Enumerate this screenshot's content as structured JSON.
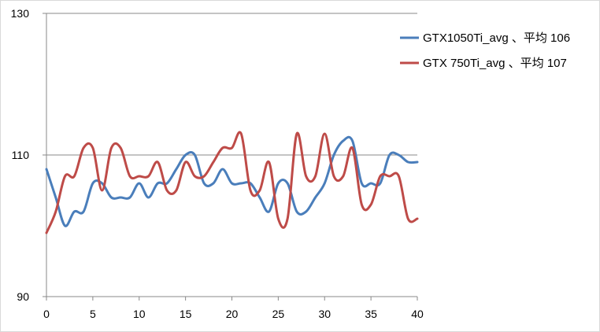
{
  "chart_data": {
    "type": "line",
    "x": [
      0,
      1,
      2,
      3,
      4,
      5,
      6,
      7,
      8,
      9,
      10,
      11,
      12,
      13,
      14,
      15,
      16,
      17,
      18,
      19,
      20,
      21,
      22,
      23,
      24,
      25,
      26,
      27,
      28,
      29,
      30,
      31,
      32,
      33,
      34,
      35,
      36,
      37,
      38,
      39,
      40
    ],
    "series": [
      {
        "name": "GTX1050Ti_avg 、平均 106",
        "color": "#4a7ebb",
        "values": [
          108,
          104,
          100,
          102,
          102,
          106,
          106,
          104,
          104,
          104,
          106,
          104,
          106,
          106,
          108,
          110,
          110,
          106,
          106,
          108,
          106,
          106,
          106,
          104,
          102,
          106,
          106,
          102,
          102,
          104,
          106,
          110,
          112,
          112,
          106,
          106,
          106,
          110,
          110,
          109,
          109
        ]
      },
      {
        "name": "GTX 750Ti_avg 、平均 107",
        "color": "#be4b48",
        "values": [
          99,
          102,
          107,
          107,
          111,
          111,
          105,
          111,
          111,
          107,
          107,
          107,
          109,
          105,
          105,
          109,
          107,
          107,
          109,
          111,
          111,
          113,
          105,
          105,
          109,
          101,
          101,
          113,
          107,
          107,
          113,
          107,
          107,
          111,
          103,
          103,
          107,
          107,
          107,
          101,
          101
        ]
      }
    ],
    "xticks": [
      "0",
      "5",
      "10",
      "15",
      "20",
      "25",
      "30",
      "35",
      "40"
    ],
    "xtick_values": [
      0,
      5,
      10,
      15,
      20,
      25,
      30,
      35,
      40
    ],
    "yticks": [
      "90",
      "110",
      "130"
    ],
    "ytick_values": [
      90,
      110,
      130
    ],
    "xlim": [
      0,
      40
    ],
    "ylim": [
      90,
      130
    ],
    "grid": "horizontal",
    "legend_position": "top-right",
    "title": "",
    "xlabel": "",
    "ylabel": ""
  }
}
